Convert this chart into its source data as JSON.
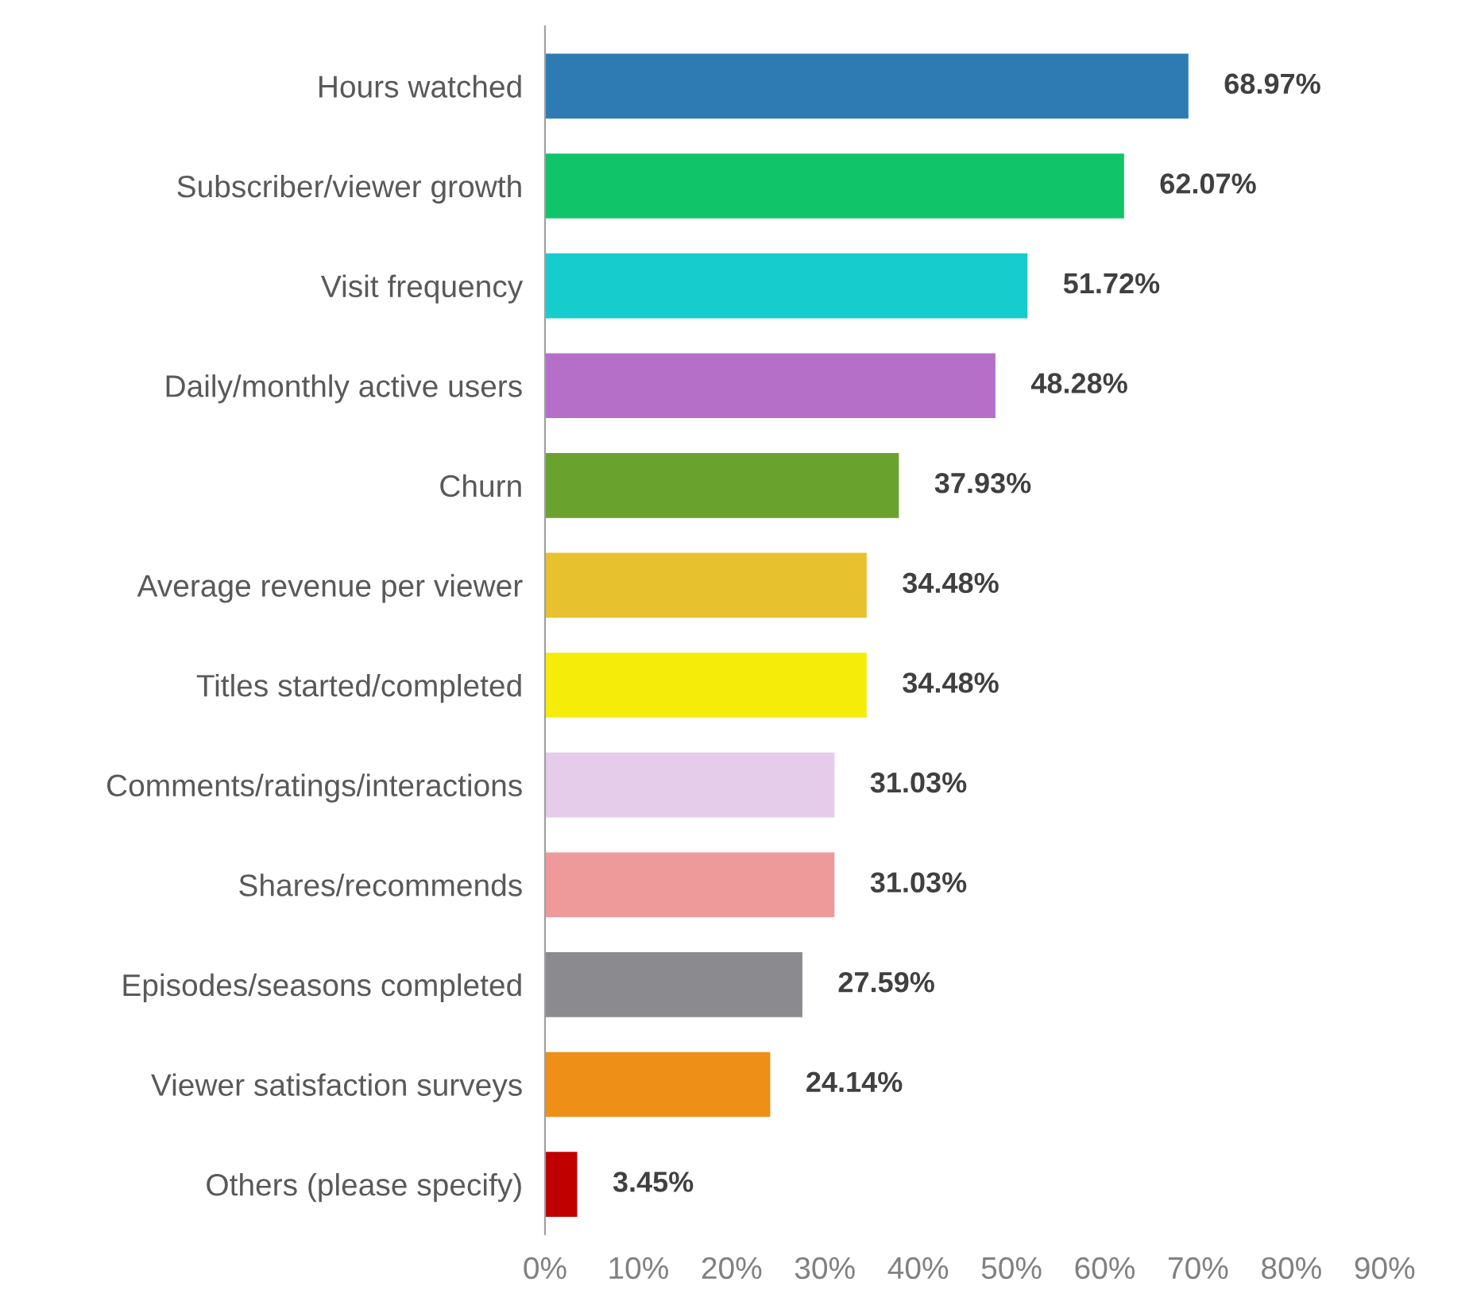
{
  "chart_data": {
    "type": "bar",
    "orientation": "horizontal",
    "categories": [
      "Hours watched",
      "Subscriber/viewer growth",
      "Visit frequency",
      "Daily/monthly active users",
      "Churn",
      "Average revenue per viewer",
      "Titles started/completed",
      "Comments/ratings/interactions",
      "Shares/recommends",
      "Episodes/seasons completed",
      "Viewer satisfaction surveys",
      "Others (please specify)"
    ],
    "values": [
      68.97,
      62.07,
      51.72,
      48.28,
      37.93,
      34.48,
      34.48,
      31.03,
      31.03,
      27.59,
      24.14,
      3.45
    ],
    "colors": [
      "#2e7bb4",
      "#10c46a",
      "#17cccc",
      "#b56fc9",
      "#6aa22e",
      "#e8c12e",
      "#f5ec0a",
      "#e6cceb",
      "#ee9a9a",
      "#8a8a8f",
      "#ee8f18",
      "#c00000"
    ],
    "value_labels": [
      "68.97%",
      "62.07%",
      "51.72%",
      "48.28%",
      "37.93%",
      "34.48%",
      "34.48%",
      "31.03%",
      "31.03%",
      "27.59%",
      "24.14%",
      "3.45%"
    ],
    "xlim": [
      0,
      90
    ],
    "xticks": [
      {
        "value": 0,
        "label": "0%"
      },
      {
        "value": 10,
        "label": "10%"
      },
      {
        "value": 20,
        "label": "20%"
      },
      {
        "value": 30,
        "label": "30%"
      },
      {
        "value": 40,
        "label": "40%"
      },
      {
        "value": 50,
        "label": "50%"
      },
      {
        "value": 60,
        "label": "60%"
      },
      {
        "value": 70,
        "label": "70%"
      },
      {
        "value": 80,
        "label": "80%"
      },
      {
        "value": 90,
        "label": "90%"
      }
    ],
    "grid": false,
    "legend": false
  }
}
